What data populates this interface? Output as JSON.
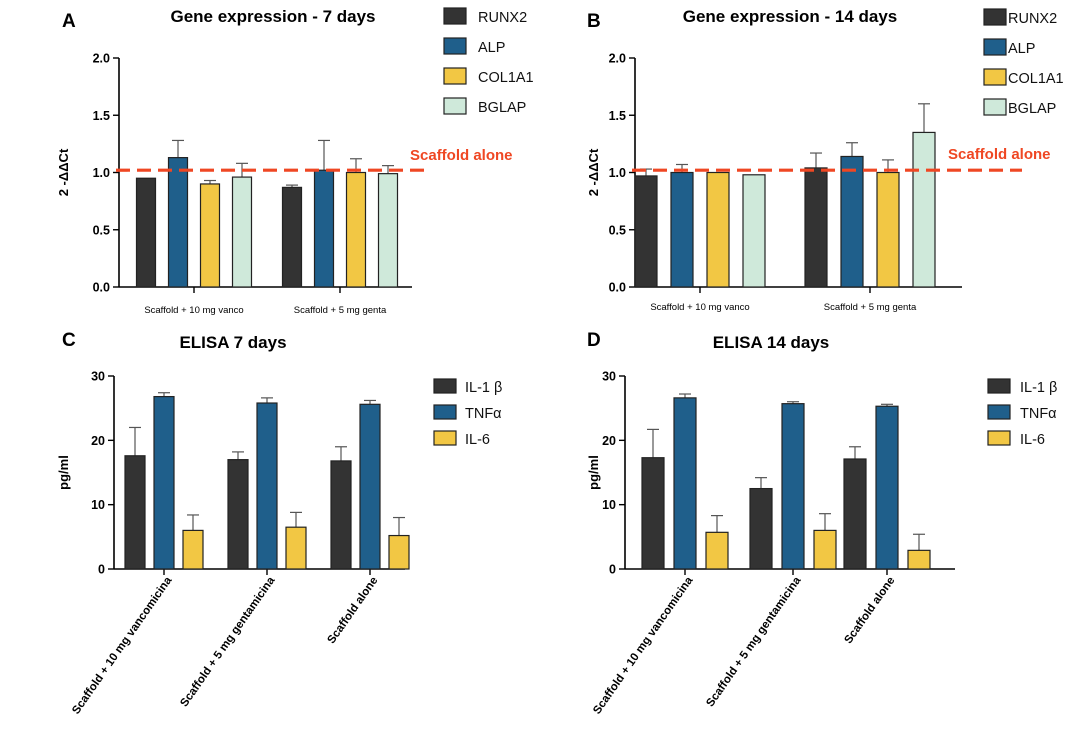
{
  "colors": {
    "RUNX2": "#333333",
    "ALP": "#1f5f8b",
    "COL1A1": "#f2c744",
    "BGLAP": "#cfe9da",
    "IL-1 β": "#333333",
    "TNFα": "#1f5f8b",
    "IL-6": "#f2c744",
    "reference": "#ef4723",
    "axis": "#000000"
  },
  "chart_data": [
    {
      "panel": "A",
      "type": "bar",
      "title": "Gene expression - 7 days",
      "ylabel": "2 -ΔΔCt",
      "xlabel": "",
      "ylim": [
        0,
        2
      ],
      "yticks": [
        "0.0",
        "0.5",
        "1.0",
        "1.5",
        "2.0"
      ],
      "ytick_values": [
        0,
        0.5,
        1,
        1.5,
        2
      ],
      "categories": [
        "Scaffold + 10 mg vanco",
        "Scaffold + 5 mg genta"
      ],
      "series": [
        {
          "name": "RUNX2",
          "values": [
            0.95,
            0.87
          ],
          "errors": [
            0.0,
            0.02
          ]
        },
        {
          "name": "ALP",
          "values": [
            1.13,
            1.02
          ],
          "errors": [
            0.15,
            0.26
          ]
        },
        {
          "name": "COL1A1",
          "values": [
            0.9,
            1.0
          ],
          "errors": [
            0.03,
            0.12
          ]
        },
        {
          "name": "BGLAP",
          "values": [
            0.96,
            0.99
          ],
          "errors": [
            0.12,
            0.07
          ]
        }
      ],
      "reference": {
        "value": 1.02,
        "label": "Scaffold alone"
      },
      "legend": "top-right"
    },
    {
      "panel": "B",
      "type": "bar",
      "title": "Gene expression - 14 days",
      "ylabel": "2 -ΔΔCt",
      "xlabel": "",
      "ylim": [
        0,
        2
      ],
      "yticks": [
        "0.0",
        "0.5",
        "1.0",
        "1.5",
        "2.0"
      ],
      "ytick_values": [
        0,
        0.5,
        1,
        1.5,
        2
      ],
      "categories": [
        "Scaffold + 10 mg vanco",
        "Scaffold + 5 mg genta"
      ],
      "series": [
        {
          "name": "RUNX2",
          "values": [
            0.97,
            1.04
          ],
          "errors": [
            0.06,
            0.13
          ]
        },
        {
          "name": "ALP",
          "values": [
            1.0,
            1.14
          ],
          "errors": [
            0.07,
            0.12
          ]
        },
        {
          "name": "COL1A1",
          "values": [
            1.0,
            1.0
          ],
          "errors": [
            0.0,
            0.11
          ]
        },
        {
          "name": "BGLAP",
          "values": [
            0.98,
            1.35
          ],
          "errors": [
            0.0,
            0.25
          ]
        }
      ],
      "reference": {
        "value": 1.02,
        "label": "Scaffold alone"
      },
      "legend": "top-right"
    },
    {
      "panel": "C",
      "type": "bar",
      "title": "ELISA 7 days",
      "ylabel": "pg/ml",
      "xlabel": "",
      "ylim": [
        0,
        30
      ],
      "yticks": [
        "0",
        "10",
        "20",
        "30"
      ],
      "ytick_values": [
        0,
        10,
        20,
        30
      ],
      "categories": [
        "Scaffold + 10 mg vancomicina",
        "Scaffold + 5 mg gentamicina",
        "Scaffold alone"
      ],
      "series": [
        {
          "name": "IL-1 β",
          "values": [
            17.6,
            17.0,
            16.8
          ],
          "errors": [
            4.4,
            1.2,
            2.2
          ]
        },
        {
          "name": "TNFα",
          "values": [
            26.8,
            25.8,
            25.6
          ],
          "errors": [
            0.6,
            0.8,
            0.6
          ]
        },
        {
          "name": "IL-6",
          "values": [
            6.0,
            6.5,
            5.2
          ],
          "errors": [
            2.4,
            2.3,
            2.8
          ]
        }
      ],
      "legend": "top-right"
    },
    {
      "panel": "D",
      "type": "bar",
      "title": "ELISA 14 days",
      "ylabel": "pg/ml",
      "xlabel": "",
      "ylim": [
        0,
        30
      ],
      "yticks": [
        "0",
        "10",
        "20",
        "30"
      ],
      "ytick_values": [
        0,
        10,
        20,
        30
      ],
      "categories": [
        "Scaffold + 10 mg vancomicina",
        "Scaffold + 5 mg gentamicina",
        "Scaffold alone"
      ],
      "series": [
        {
          "name": "IL-1 β",
          "values": [
            17.3,
            12.5,
            17.1
          ],
          "errors": [
            4.4,
            1.7,
            1.9
          ]
        },
        {
          "name": "TNFα",
          "values": [
            26.6,
            25.7,
            25.3
          ],
          "errors": [
            0.6,
            0.3,
            0.3
          ]
        },
        {
          "name": "IL-6",
          "values": [
            5.7,
            6.0,
            2.9
          ],
          "errors": [
            2.6,
            2.6,
            2.5
          ]
        }
      ],
      "legend": "top-right"
    }
  ]
}
